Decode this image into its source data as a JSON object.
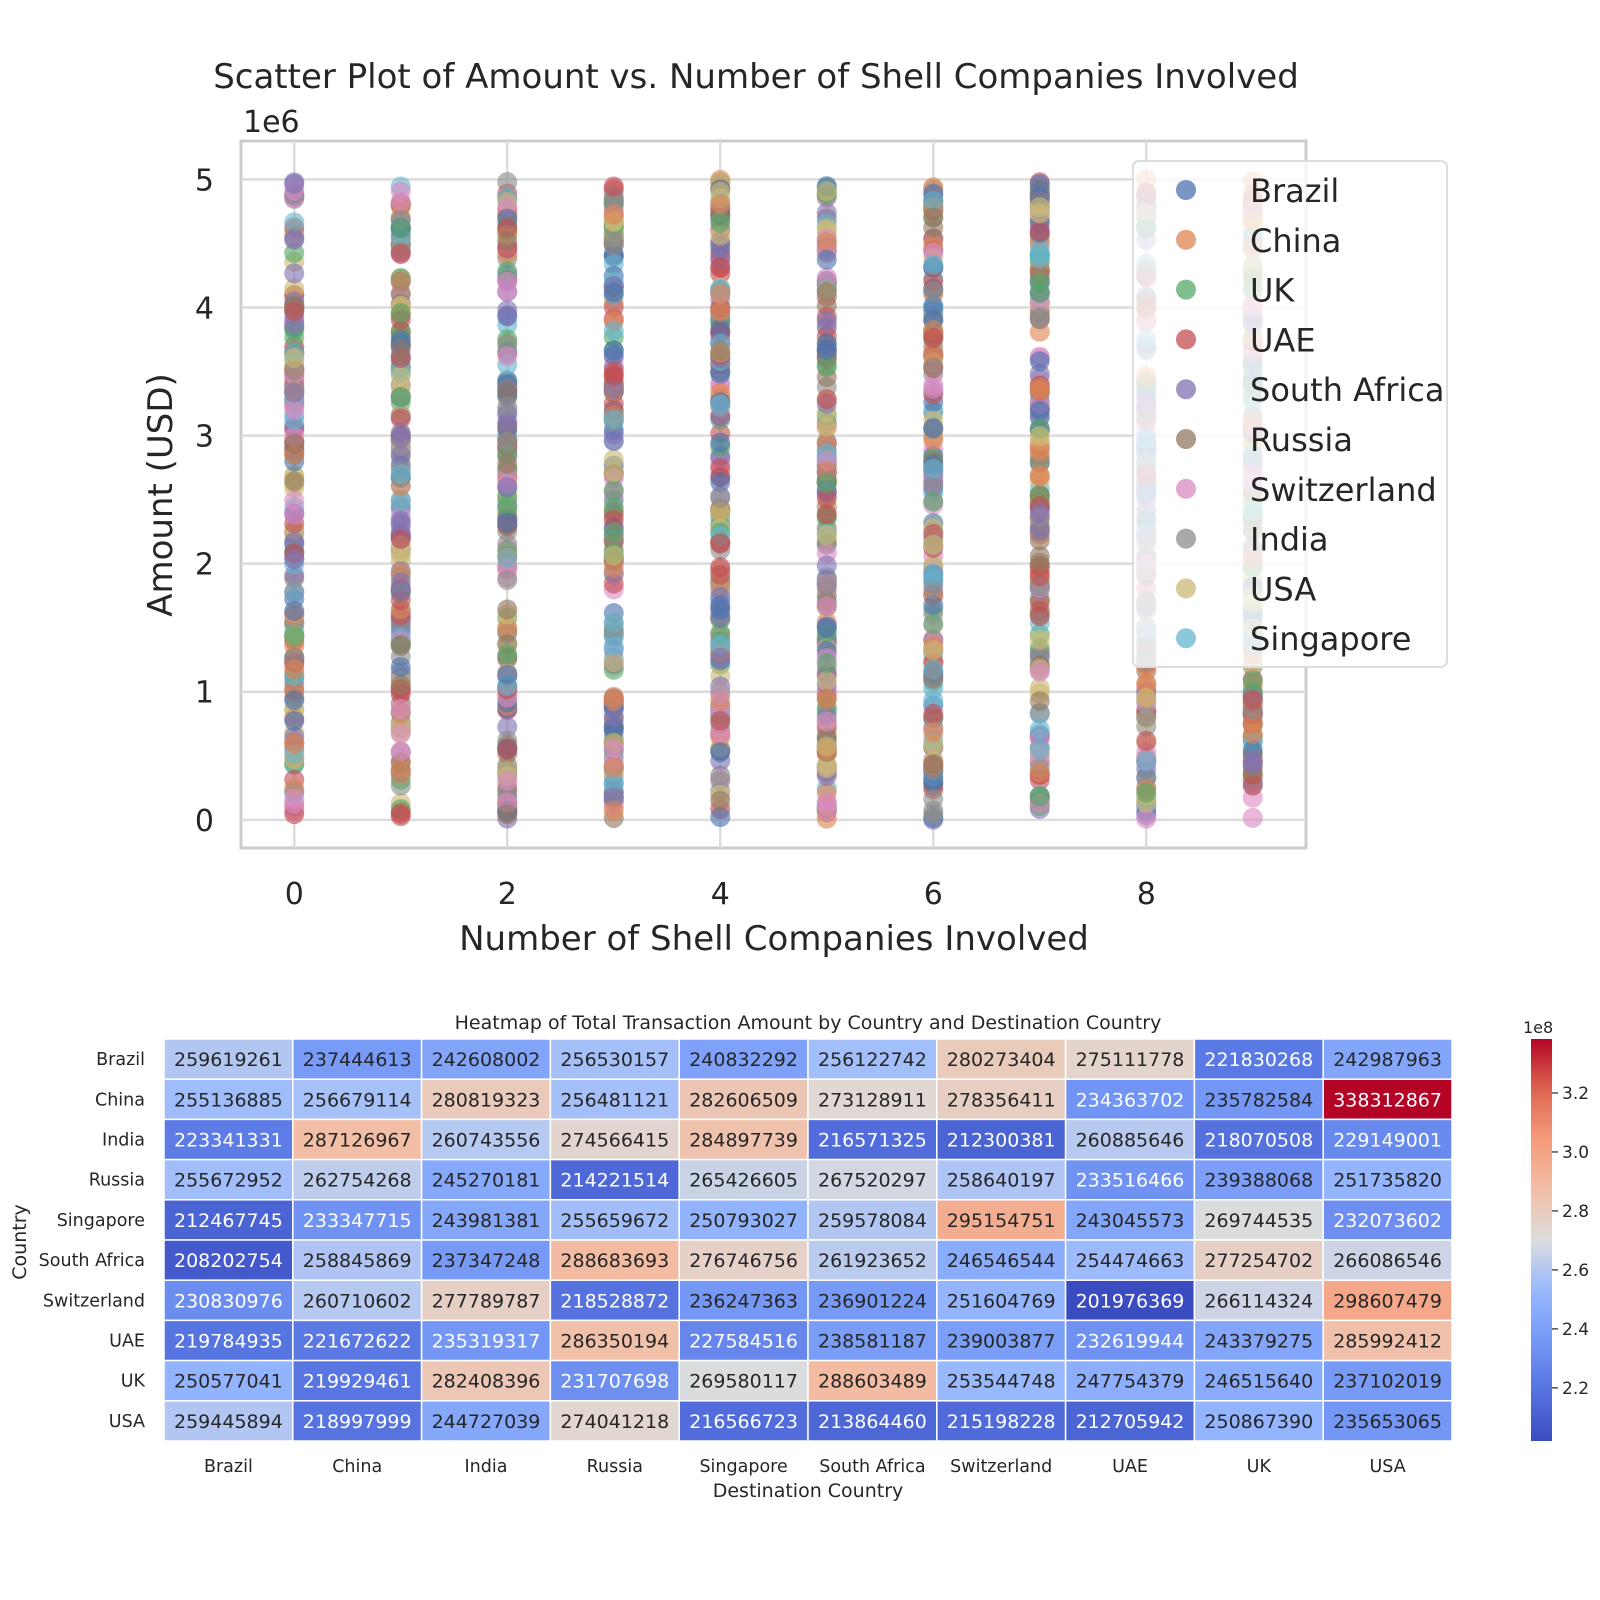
{
  "chart_data": [
    {
      "type": "scatter",
      "title": "Scatter Plot of Amount vs. Number of Shell Companies Involved",
      "xlabel": "Number of Shell Companies Involved",
      "ylabel": "Amount (USD)",
      "y_offset_label": "1e6",
      "xlim": [
        -0.5,
        9.5
      ],
      "ylim": [
        -0.22,
        5.3
      ],
      "x_ticks": [
        0,
        2,
        4,
        6,
        8
      ],
      "x_tick_labels": [
        "0",
        "2",
        "4",
        "6",
        "8"
      ],
      "y_ticks": [
        0,
        1,
        2,
        3,
        4,
        5
      ],
      "y_tick_labels": [
        "0",
        "1",
        "2",
        "3",
        "4",
        "5"
      ],
      "grid": true,
      "legend_position": "top-right",
      "x_values": [
        0,
        1,
        2,
        3,
        4,
        5,
        6,
        7,
        8,
        9
      ],
      "y_range_per_x": [
        0,
        5
      ],
      "note": "",
      "series": [
        {
          "name": "Brazil",
          "color": "#4c72b0"
        },
        {
          "name": "China",
          "color": "#dd8452"
        },
        {
          "name": "UK",
          "color": "#55a868"
        },
        {
          "name": "UAE",
          "color": "#c44e52"
        },
        {
          "name": "South Africa",
          "color": "#8172b3"
        },
        {
          "name": "Russia",
          "color": "#937860"
        },
        {
          "name": "Switzerland",
          "color": "#da8bc3"
        },
        {
          "name": "India",
          "color": "#8c8c8c"
        },
        {
          "name": "USA",
          "color": "#ccb974"
        },
        {
          "name": "Singapore",
          "color": "#64b5cd"
        }
      ]
    },
    {
      "type": "heatmap",
      "title": "Heatmap of Total Transaction Amount by Country and Destination Country",
      "xlabel": "Destination Country",
      "ylabel": "Country",
      "colormap": "coolwarm",
      "colorbar_offset_label": "1e8",
      "colorbar_ticks": [
        2.2,
        2.4,
        2.6,
        2.8,
        3.0,
        3.2
      ],
      "colorbar_tick_labels": [
        "2.2",
        "2.4",
        "2.6",
        "2.8",
        "3.0",
        "3.2"
      ],
      "rows": [
        "Brazil",
        "China",
        "India",
        "Russia",
        "Singapore",
        "South Africa",
        "Switzerland",
        "UAE",
        "UK",
        "USA"
      ],
      "columns": [
        "Brazil",
        "China",
        "India",
        "Russia",
        "Singapore",
        "South Africa",
        "Switzerland",
        "UAE",
        "UK",
        "USA"
      ],
      "values": [
        [
          259619261,
          237444613,
          242608002,
          256530157,
          240832292,
          256122742,
          280273404,
          275111778,
          221830268,
          242987963
        ],
        [
          255136885,
          256679114,
          280819323,
          256481121,
          282606509,
          273128911,
          278356411,
          234363702,
          235782584,
          338312867
        ],
        [
          223341331,
          287126967,
          260743556,
          274566415,
          284897739,
          216571325,
          212300381,
          260885646,
          218070508,
          229149001
        ],
        [
          255672952,
          262754268,
          245270181,
          214221514,
          265426605,
          267520297,
          258640197,
          233516466,
          239388068,
          251735820
        ],
        [
          212467745,
          233347715,
          243981381,
          255659672,
          250793027,
          259578084,
          295154751,
          243045573,
          269744535,
          232073602
        ],
        [
          208202754,
          258845869,
          237347248,
          288683693,
          276746756,
          261923652,
          246546544,
          254474663,
          277254702,
          266086546
        ],
        [
          230830976,
          260710602,
          277789787,
          218528872,
          236247363,
          236901224,
          251604769,
          201976369,
          266114324,
          298607479
        ],
        [
          219784935,
          221672622,
          235319317,
          286350194,
          227584516,
          238581187,
          239003877,
          232619944,
          243379275,
          285992412
        ],
        [
          250577041,
          219929461,
          282408396,
          231707698,
          269580117,
          288603489,
          253544748,
          247754379,
          246515640,
          237102019
        ],
        [
          259445894,
          218997999,
          244727039,
          274041218,
          216566723,
          213864460,
          215198228,
          212705942,
          250867390,
          235653065
        ]
      ],
      "vmin": 201976369,
      "vmax": 338312867
    }
  ]
}
